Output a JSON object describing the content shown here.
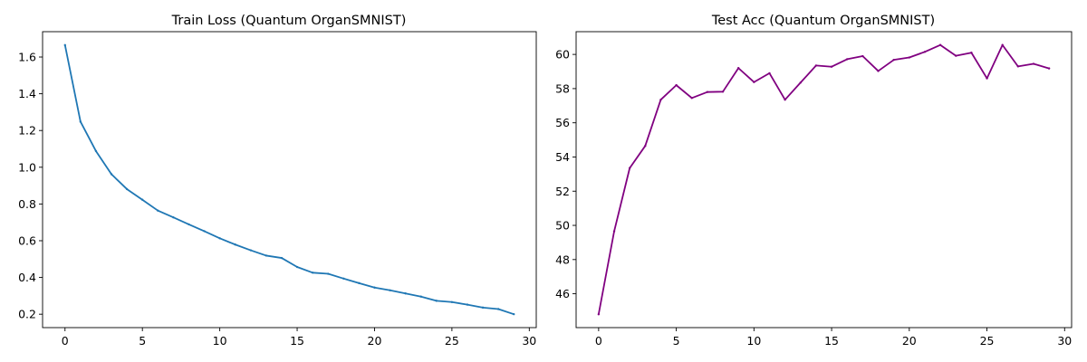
{
  "chart_data": [
    {
      "type": "line",
      "title": "Train Loss (Quantum OrganSMNIST)",
      "xlabel": "",
      "ylabel": "",
      "x": [
        0,
        1,
        2,
        3,
        4,
        5,
        6,
        7,
        8,
        9,
        10,
        11,
        12,
        13,
        14,
        15,
        16,
        17,
        18,
        19,
        20,
        21,
        22,
        23,
        24,
        25,
        26,
        27,
        28,
        29
      ],
      "series": [
        {
          "values": [
            1.665,
            1.248,
            1.088,
            0.962,
            0.881,
            0.823,
            0.764,
            0.727,
            0.689,
            0.652,
            0.613,
            0.579,
            0.548,
            0.519,
            0.506,
            0.457,
            0.426,
            0.42,
            0.394,
            0.369,
            0.345,
            0.33,
            0.313,
            0.296,
            0.273,
            0.266,
            0.252,
            0.236,
            0.228,
            0.2
          ],
          "color": "#1f77b4"
        }
      ],
      "xlim": [
        -1.45,
        30.45
      ],
      "ylim": [
        0.127,
        1.738
      ],
      "xticks": [
        0,
        5,
        10,
        15,
        20,
        25,
        30
      ],
      "yticks": [
        0.2,
        0.4,
        0.6,
        0.8,
        1.0,
        1.2,
        1.4,
        1.6
      ],
      "xtick_labels": [
        "0",
        "5",
        "10",
        "15",
        "20",
        "25",
        "30"
      ],
      "ytick_labels": [
        "0.2",
        "0.4",
        "0.6",
        "0.8",
        "1.0",
        "1.2",
        "1.4",
        "1.6"
      ],
      "grid": false
    },
    {
      "type": "line",
      "title": "Test Acc (Quantum OrganSMNIST)",
      "xlabel": "",
      "ylabel": "",
      "x": [
        0,
        1,
        2,
        3,
        4,
        5,
        6,
        7,
        8,
        9,
        10,
        11,
        12,
        13,
        14,
        15,
        16,
        17,
        18,
        19,
        20,
        21,
        22,
        23,
        24,
        25,
        26,
        27,
        28,
        29
      ],
      "series": [
        {
          "values": [
            44.8,
            49.65,
            53.35,
            54.65,
            57.35,
            58.2,
            57.45,
            57.8,
            57.82,
            59.2,
            58.38,
            58.9,
            57.35,
            58.35,
            59.35,
            59.28,
            59.72,
            59.9,
            59.03,
            59.68,
            59.82,
            60.15,
            60.55,
            59.92,
            60.1,
            58.6,
            60.55,
            59.3,
            59.45,
            59.18
          ],
          "color": "#800080"
        }
      ],
      "xlim": [
        -1.45,
        30.45
      ],
      "ylim": [
        44.02,
        61.33
      ],
      "xticks": [
        0,
        5,
        10,
        15,
        20,
        25,
        30
      ],
      "yticks": [
        46,
        48,
        50,
        52,
        54,
        56,
        58,
        60
      ],
      "xtick_labels": [
        "0",
        "5",
        "10",
        "15",
        "20",
        "25",
        "30"
      ],
      "ytick_labels": [
        "46",
        "48",
        "50",
        "52",
        "54",
        "56",
        "58",
        "60"
      ],
      "grid": false
    }
  ]
}
